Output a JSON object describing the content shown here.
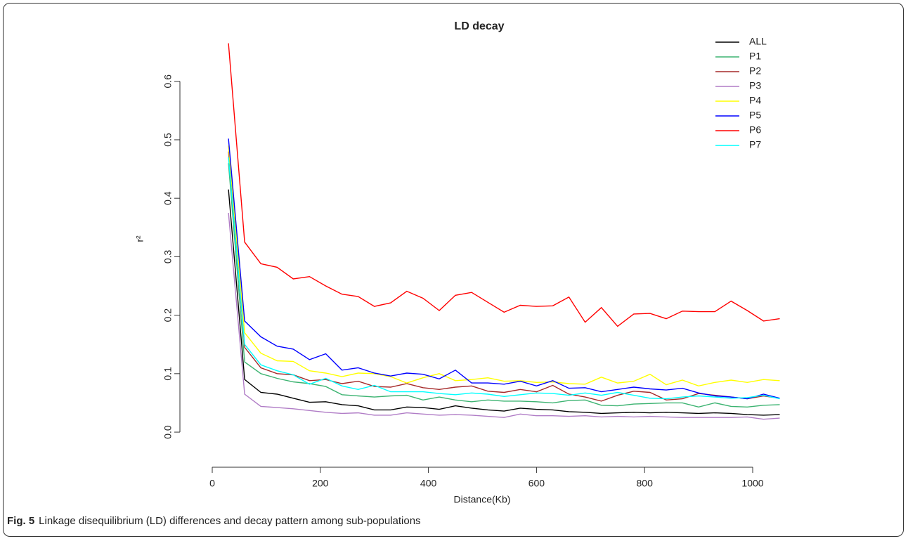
{
  "chart_data": {
    "type": "line",
    "title": "LD decay",
    "xlabel": "Distance(Kb)",
    "ylabel": "r²",
    "x": [
      30,
      60,
      90,
      120,
      150,
      180,
      210,
      240,
      270,
      300,
      330,
      360,
      390,
      420,
      450,
      480,
      510,
      540,
      570,
      600,
      630,
      660,
      690,
      720,
      750,
      780,
      810,
      840,
      870,
      900,
      930,
      960,
      990,
      1020,
      1050
    ],
    "xlim": [
      -52,
      1052
    ],
    "ylim": [
      -0.042,
      0.685
    ],
    "xticks": [
      0,
      200,
      400,
      600,
      800,
      1000
    ],
    "yticks": [
      {
        "value": 0,
        "label": "0.0"
      },
      0.1,
      0.2,
      0.3,
      0.4,
      0.5,
      0.6
    ],
    "legend": "topright",
    "series": [
      {
        "name": "ALL",
        "color": "#000000",
        "values": [
          0.415,
          0.09,
          0.068,
          0.065,
          0.058,
          0.051,
          0.052,
          0.047,
          0.045,
          0.038,
          0.038,
          0.043,
          0.042,
          0.039,
          0.045,
          0.041,
          0.038,
          0.036,
          0.041,
          0.039,
          0.038,
          0.035,
          0.034,
          0.032,
          0.033,
          0.034,
          0.033,
          0.034,
          0.033,
          0.032,
          0.033,
          0.032,
          0.03,
          0.029,
          0.03
        ]
      },
      {
        "name": "P1",
        "color": "#3cb371",
        "values": [
          0.46,
          0.12,
          0.1,
          0.092,
          0.086,
          0.083,
          0.078,
          0.064,
          0.062,
          0.06,
          0.062,
          0.063,
          0.055,
          0.06,
          0.055,
          0.052,
          0.055,
          0.053,
          0.053,
          0.052,
          0.05,
          0.054,
          0.055,
          0.046,
          0.045,
          0.048,
          0.049,
          0.05,
          0.05,
          0.043,
          0.05,
          0.044,
          0.043,
          0.046,
          0.047
        ]
      },
      {
        "name": "P2",
        "color": "#a52a2a",
        "values": [
          0.48,
          0.145,
          0.11,
          0.1,
          0.098,
          0.088,
          0.09,
          0.083,
          0.087,
          0.078,
          0.077,
          0.083,
          0.076,
          0.073,
          0.077,
          0.079,
          0.07,
          0.068,
          0.073,
          0.069,
          0.08,
          0.065,
          0.06,
          0.053,
          0.063,
          0.07,
          0.068,
          0.055,
          0.057,
          0.066,
          0.063,
          0.06,
          0.057,
          0.062,
          0.058
        ]
      },
      {
        "name": "P3",
        "color": "#b07cc6",
        "values": [
          0.375,
          0.065,
          0.044,
          0.042,
          0.04,
          0.037,
          0.034,
          0.032,
          0.033,
          0.029,
          0.029,
          0.033,
          0.031,
          0.029,
          0.03,
          0.029,
          0.027,
          0.025,
          0.031,
          0.028,
          0.028,
          0.027,
          0.028,
          0.026,
          0.027,
          0.026,
          0.027,
          0.026,
          0.025,
          0.025,
          0.025,
          0.025,
          0.026,
          0.022,
          0.024
        ]
      },
      {
        "name": "P4",
        "color": "#ffff00",
        "values": [
          0.49,
          0.17,
          0.135,
          0.122,
          0.121,
          0.105,
          0.101,
          0.095,
          0.101,
          0.1,
          0.095,
          0.084,
          0.093,
          0.1,
          0.088,
          0.09,
          0.093,
          0.087,
          0.088,
          0.085,
          0.086,
          0.083,
          0.082,
          0.094,
          0.084,
          0.087,
          0.099,
          0.081,
          0.089,
          0.079,
          0.085,
          0.089,
          0.085,
          0.09,
          0.088
        ]
      },
      {
        "name": "P5",
        "color": "#0000ff",
        "values": [
          0.502,
          0.19,
          0.163,
          0.147,
          0.142,
          0.124,
          0.134,
          0.106,
          0.11,
          0.101,
          0.096,
          0.101,
          0.099,
          0.091,
          0.106,
          0.084,
          0.084,
          0.082,
          0.087,
          0.079,
          0.088,
          0.075,
          0.076,
          0.069,
          0.073,
          0.077,
          0.074,
          0.072,
          0.075,
          0.067,
          0.062,
          0.06,
          0.057,
          0.065,
          0.058
        ]
      },
      {
        "name": "P6",
        "color": "#ff0000",
        "values": [
          0.665,
          0.325,
          0.288,
          0.282,
          0.262,
          0.266,
          0.25,
          0.236,
          0.232,
          0.215,
          0.221,
          0.241,
          0.229,
          0.208,
          0.234,
          0.239,
          0.222,
          0.205,
          0.217,
          0.215,
          0.216,
          0.231,
          0.188,
          0.213,
          0.181,
          0.202,
          0.203,
          0.194,
          0.207,
          0.206,
          0.206,
          0.224,
          0.208,
          0.19,
          0.194
        ]
      },
      {
        "name": "P7",
        "color": "#00ffff",
        "values": [
          0.47,
          0.15,
          0.115,
          0.105,
          0.098,
          0.082,
          0.092,
          0.079,
          0.073,
          0.08,
          0.069,
          0.069,
          0.069,
          0.066,
          0.064,
          0.067,
          0.065,
          0.061,
          0.064,
          0.067,
          0.066,
          0.063,
          0.067,
          0.063,
          0.068,
          0.063,
          0.058,
          0.057,
          0.06,
          0.062,
          0.06,
          0.058,
          0.059,
          0.063,
          0.057
        ]
      }
    ]
  },
  "caption": {
    "label": "Fig. 5",
    "text": "Linkage disequilibrium (LD) differences and decay pattern among sub-populations"
  }
}
